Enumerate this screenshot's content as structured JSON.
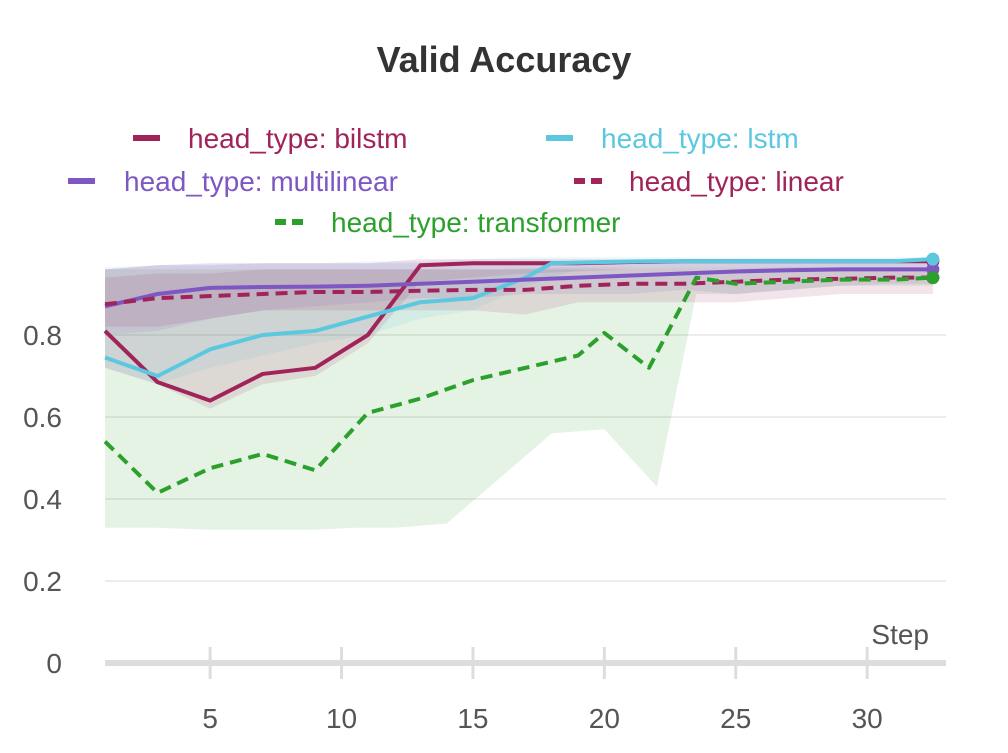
{
  "chart_data": {
    "type": "line",
    "title": "Valid Accuracy",
    "xlabel": "Step",
    "ylabel": "",
    "xlim": [
      1,
      33
    ],
    "ylim": [
      0,
      1
    ],
    "xticks": [
      5,
      10,
      15,
      20,
      25,
      30
    ],
    "yticks": [
      0,
      0.2,
      0.4,
      0.6,
      0.8
    ],
    "ytick_labels": [
      "0",
      "0.2",
      "0.4",
      "0.6",
      "0.8"
    ],
    "grid": true,
    "legend_position": "top",
    "series": [
      {
        "name": "head_type: bilstm",
        "color": "#a0245a",
        "dash": "solid",
        "x": [
          1,
          3,
          5,
          7,
          9,
          11,
          13,
          15,
          17,
          19,
          21,
          23,
          25,
          27,
          29,
          31,
          32.5
        ],
        "y": [
          0.81,
          0.685,
          0.64,
          0.705,
          0.72,
          0.8,
          0.97,
          0.975,
          0.975,
          0.975,
          0.978,
          0.98,
          0.98,
          0.98,
          0.98,
          0.98,
          0.98
        ],
        "band": {
          "x": [
            1,
            3,
            5,
            7,
            9,
            11,
            13,
            15,
            17,
            19,
            21,
            23,
            25,
            27,
            29,
            31,
            32.5
          ],
          "lower": [
            0.72,
            0.68,
            0.62,
            0.68,
            0.7,
            0.78,
            0.93,
            0.94,
            0.95,
            0.955,
            0.96,
            0.96,
            0.96,
            0.96,
            0.96,
            0.965,
            0.965
          ],
          "upper": [
            0.96,
            0.97,
            0.97,
            0.975,
            0.975,
            0.975,
            0.985,
            0.985,
            0.985,
            0.985,
            0.985,
            0.985,
            0.985,
            0.985,
            0.985,
            0.985,
            0.985
          ]
        }
      },
      {
        "name": "head_type: lstm",
        "color": "#5bc8e0",
        "dash": "solid",
        "x": [
          1,
          3,
          5,
          7,
          9,
          11,
          13,
          15,
          17,
          18,
          20,
          22,
          25,
          28,
          31,
          32.5
        ],
        "y": [
          0.745,
          0.7,
          0.765,
          0.8,
          0.81,
          0.845,
          0.88,
          0.89,
          0.94,
          0.975,
          0.978,
          0.98,
          0.98,
          0.98,
          0.98,
          0.985
        ],
        "band": {
          "x": [
            1,
            3,
            5,
            7,
            9,
            11,
            13,
            15,
            17,
            19,
            21,
            23,
            25,
            27,
            29,
            31,
            32.5
          ],
          "lower": [
            0.72,
            0.68,
            0.72,
            0.75,
            0.78,
            0.8,
            0.84,
            0.86,
            0.92,
            0.96,
            0.965,
            0.965,
            0.965,
            0.965,
            0.965,
            0.965,
            0.965
          ],
          "upper": [
            0.965,
            0.97,
            0.975,
            0.975,
            0.975,
            0.98,
            0.98,
            0.985,
            0.99,
            0.99,
            0.99,
            0.99,
            0.99,
            0.99,
            0.99,
            0.99,
            0.99
          ]
        }
      },
      {
        "name": "head_type: multilinear",
        "color": "#7e57c2",
        "dash": "solid",
        "x": [
          1,
          3,
          5,
          7,
          9,
          11,
          13,
          15,
          17,
          19,
          21,
          23,
          25,
          27,
          29,
          31,
          32.5
        ],
        "y": [
          0.87,
          0.9,
          0.915,
          0.917,
          0.918,
          0.92,
          0.925,
          0.93,
          0.935,
          0.94,
          0.945,
          0.95,
          0.955,
          0.958,
          0.96,
          0.96,
          0.96
        ],
        "band": {
          "x": [
            1,
            3,
            5,
            7,
            9,
            11,
            13,
            15,
            17,
            19,
            21,
            23,
            25,
            27,
            29,
            31,
            32.5
          ],
          "lower": [
            0.8,
            0.81,
            0.84,
            0.86,
            0.87,
            0.88,
            0.89,
            0.89,
            0.9,
            0.9,
            0.9,
            0.91,
            0.9,
            0.91,
            0.92,
            0.925,
            0.925
          ],
          "upper": [
            0.96,
            0.97,
            0.975,
            0.975,
            0.975,
            0.975,
            0.975,
            0.975,
            0.975,
            0.975,
            0.975,
            0.975,
            0.975,
            0.975,
            0.975,
            0.975,
            0.975
          ]
        }
      },
      {
        "name": "head_type: linear",
        "color": "#a0245a",
        "dash": "dashed",
        "x": [
          1,
          3,
          5,
          7,
          9,
          11,
          13,
          15,
          17,
          19,
          21,
          23,
          25,
          27,
          29,
          31,
          32.5
        ],
        "y": [
          0.875,
          0.89,
          0.895,
          0.9,
          0.905,
          0.905,
          0.908,
          0.91,
          0.91,
          0.92,
          0.925,
          0.925,
          0.93,
          0.935,
          0.937,
          0.94,
          0.94
        ],
        "band": {
          "x": [
            1,
            3,
            5,
            7,
            9,
            11,
            13,
            15,
            17,
            19,
            21,
            23,
            25,
            27,
            29,
            31,
            32.5
          ],
          "lower": [
            0.82,
            0.82,
            0.84,
            0.86,
            0.86,
            0.86,
            0.86,
            0.86,
            0.85,
            0.88,
            0.88,
            0.88,
            0.88,
            0.89,
            0.9,
            0.9,
            0.9
          ],
          "upper": [
            0.94,
            0.95,
            0.95,
            0.96,
            0.96,
            0.96,
            0.96,
            0.96,
            0.96,
            0.96,
            0.96,
            0.96,
            0.96,
            0.965,
            0.965,
            0.965,
            0.965
          ]
        }
      },
      {
        "name": "head_type: transformer",
        "color": "#2ca02c",
        "dash": "dashed",
        "x": [
          1,
          3,
          5,
          7,
          9,
          11,
          13,
          15,
          17,
          19,
          20,
          21.7,
          23.5,
          25,
          27,
          29,
          31,
          32.5
        ],
        "y": [
          0.54,
          0.415,
          0.475,
          0.51,
          0.47,
          0.61,
          0.645,
          0.69,
          0.72,
          0.75,
          0.805,
          0.72,
          0.94,
          0.925,
          0.93,
          0.935,
          0.935,
          0.94
        ],
        "band": {
          "x": [
            1,
            3,
            5,
            7,
            9,
            10.5,
            12,
            14,
            16,
            18,
            20,
            22,
            23.5,
            25,
            27,
            29,
            31,
            32.5
          ],
          "lower": [
            0.33,
            0.33,
            0.325,
            0.325,
            0.325,
            0.33,
            0.33,
            0.34,
            0.45,
            0.56,
            0.57,
            0.43,
            0.9,
            0.9,
            0.91,
            0.92,
            0.92,
            0.92
          ],
          "upper": [
            0.96,
            0.96,
            0.96,
            0.96,
            0.96,
            0.96,
            0.96,
            0.96,
            0.96,
            0.965,
            0.965,
            0.965,
            0.965,
            0.965,
            0.965,
            0.965,
            0.965,
            0.965
          ]
        }
      }
    ]
  }
}
